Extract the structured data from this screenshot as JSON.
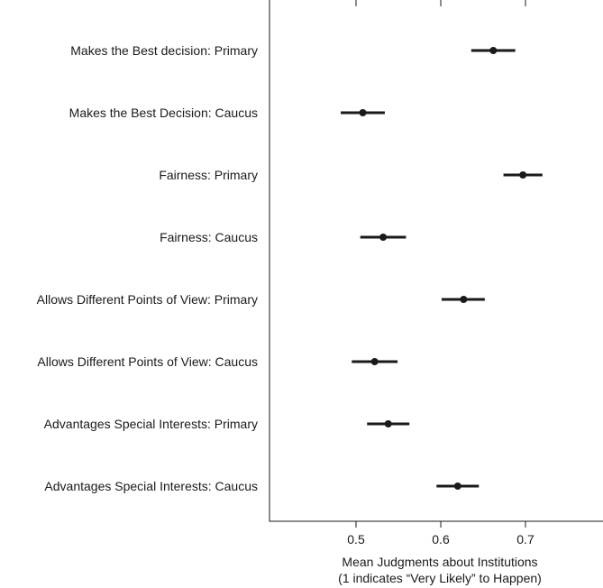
{
  "chart_data": {
    "type": "scatter",
    "style": "dot-and-whisker",
    "xlabel": "Mean Judgments about Institutions",
    "xlabel_line2": "(1 indicates “Very Likely” to Happen)",
    "xlim": [
      0.405,
      0.8
    ],
    "xticks": [
      0.5,
      0.6,
      0.7
    ],
    "xtick_labels": [
      "0.5",
      "0.6",
      "0.7"
    ],
    "grid": false,
    "legend": "none",
    "marker_color": "#1a1a1a",
    "points": [
      {
        "label": "Makes the Best decision: Primary",
        "mean": 0.662,
        "lower": 0.636,
        "upper": 0.688
      },
      {
        "label": "Makes the Best Decision: Caucus",
        "mean": 0.508,
        "lower": 0.482,
        "upper": 0.534
      },
      {
        "label": "Fairness: Primary",
        "mean": 0.697,
        "lower": 0.674,
        "upper": 0.72
      },
      {
        "label": "Fairness: Caucus",
        "mean": 0.532,
        "lower": 0.505,
        "upper": 0.559
      },
      {
        "label": "Allows Different Points of View: Primary",
        "mean": 0.627,
        "lower": 0.601,
        "upper": 0.652
      },
      {
        "label": "Allows Different Points of View: Caucus",
        "mean": 0.522,
        "lower": 0.495,
        "upper": 0.549
      },
      {
        "label": "Advantages Special Interests: Primary",
        "mean": 0.538,
        "lower": 0.513,
        "upper": 0.563
      },
      {
        "label": "Advantages Special Interests: Caucus",
        "mean": 0.62,
        "lower": 0.595,
        "upper": 0.645
      }
    ]
  }
}
